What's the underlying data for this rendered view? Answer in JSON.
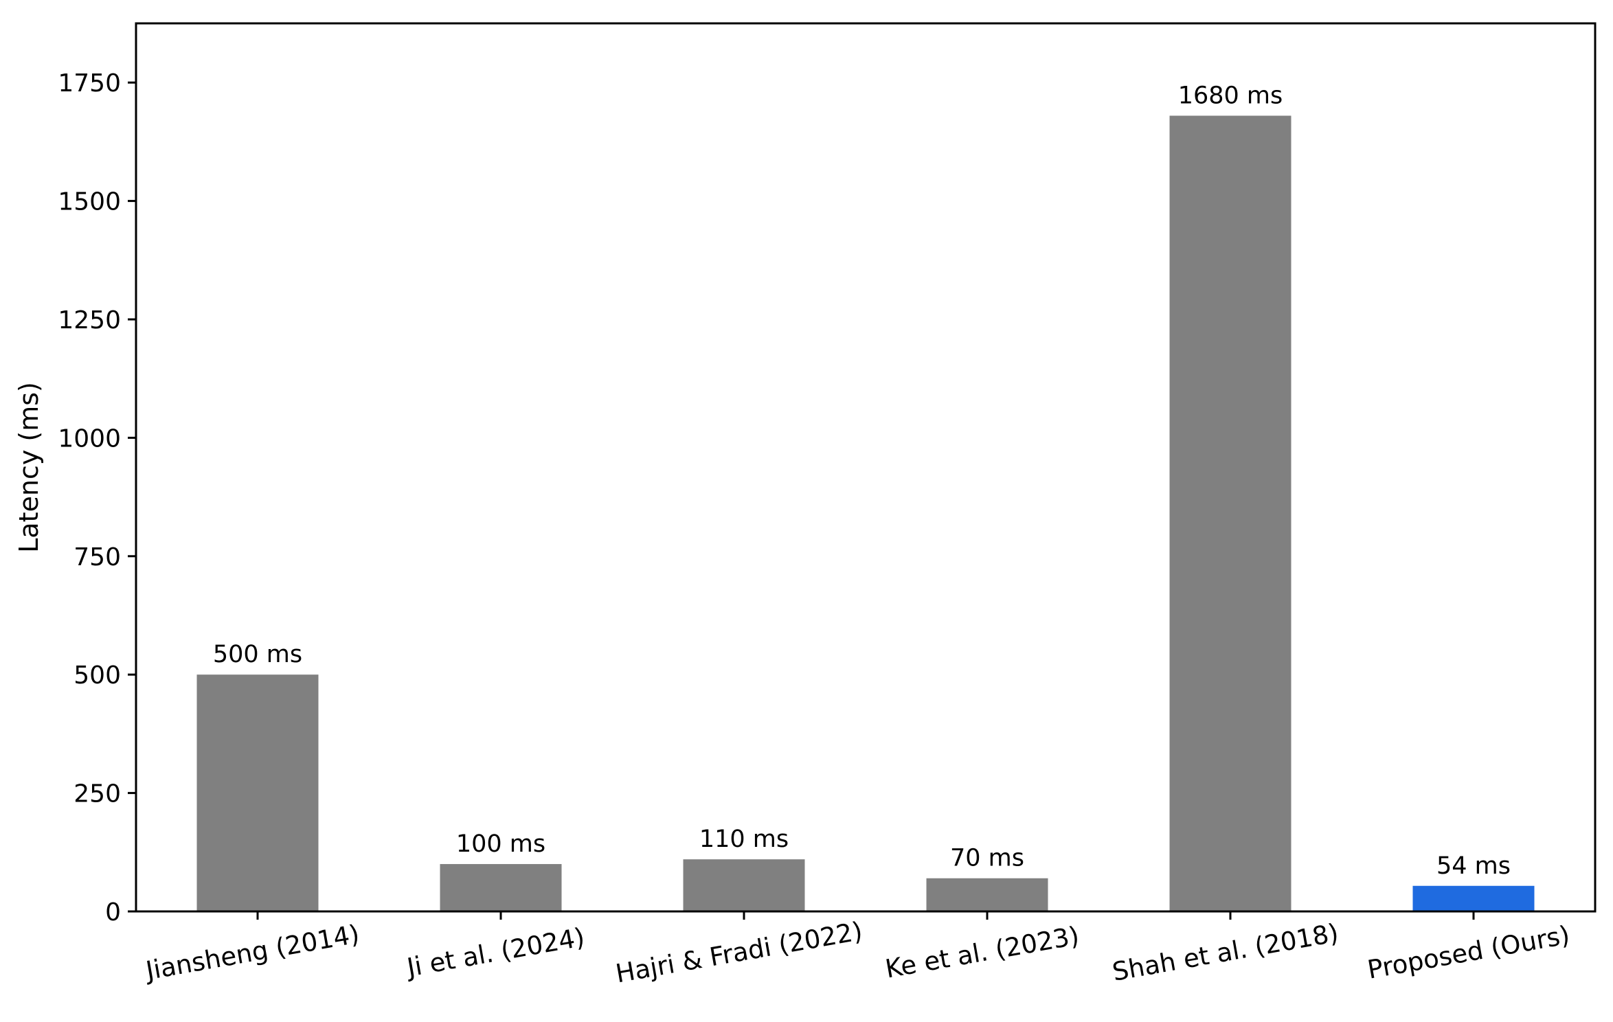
{
  "chart_data": {
    "type": "bar",
    "categories": [
      "Jiansheng (2014)",
      "Ji et al. (2024)",
      "Hajri & Fradi (2022)",
      "Ke et al. (2023)",
      "Shah et al. (2018)",
      "Proposed (Ours)"
    ],
    "values": [
      500,
      100,
      110,
      70,
      1680,
      54
    ],
    "data_labels": [
      "500 ms",
      "100 ms",
      "110 ms",
      "70 ms",
      "1680 ms",
      "54 ms"
    ],
    "bar_colors": [
      "#808080",
      "#808080",
      "#808080",
      "#808080",
      "#808080",
      "#1f6be0"
    ],
    "title": "",
    "xlabel": "",
    "ylabel": "Latency (ms)",
    "ylim": [
      0,
      1875
    ],
    "yticks": [
      0,
      250,
      500,
      750,
      1000,
      1250,
      1500,
      1750
    ],
    "grid": false,
    "legend": "none"
  }
}
